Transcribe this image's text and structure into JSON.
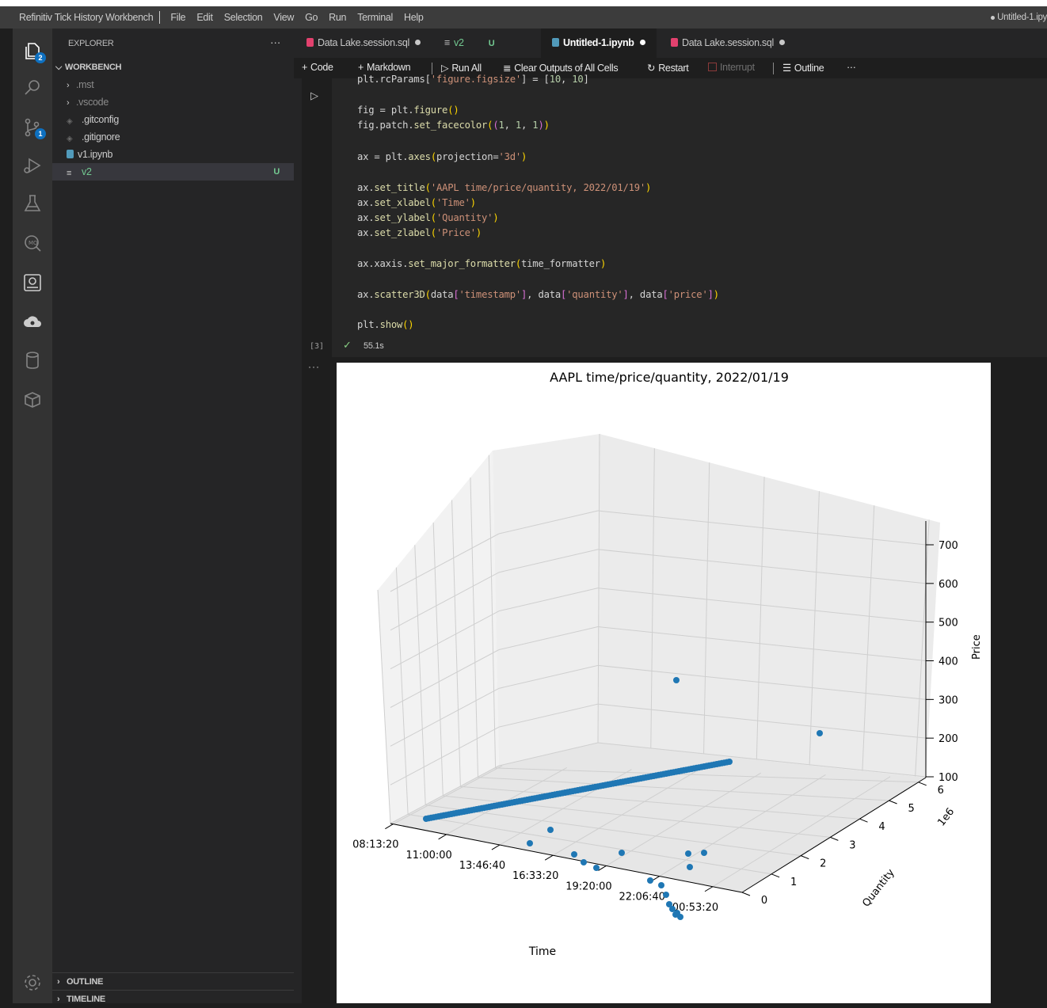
{
  "window": {
    "app_title": "Refinitiv Tick History Workbench",
    "menu": [
      "File",
      "Edit",
      "Selection",
      "View",
      "Go",
      "Run",
      "Terminal",
      "Help"
    ],
    "right_title": "Untitled-1.ipy"
  },
  "activity_bar": {
    "items": [
      {
        "icon": "files-icon",
        "badge": "2"
      },
      {
        "icon": "search-icon"
      },
      {
        "icon": "source-control-icon",
        "badge": "1"
      },
      {
        "icon": "run-debug-icon"
      },
      {
        "icon": "flask-icon"
      },
      {
        "icon": "mq-icon"
      },
      {
        "icon": "notebook-book-icon"
      },
      {
        "icon": "cloud-icon"
      },
      {
        "icon": "database-icon"
      },
      {
        "icon": "package-icon"
      },
      {
        "icon": "gear-icon"
      }
    ]
  },
  "explorer": {
    "header": "EXPLORER",
    "more": "···",
    "root": "WORKBENCH",
    "items": [
      {
        "label": ".mst",
        "type": "folder"
      },
      {
        "label": ".vscode",
        "type": "folder"
      },
      {
        "label": ".gitconfig",
        "type": "file"
      },
      {
        "label": ".gitignore",
        "type": "file"
      },
      {
        "label": "v1.ipynb",
        "type": "notebook"
      },
      {
        "label": "v2",
        "type": "file",
        "badge": "U"
      }
    ],
    "outline": "OUTLINE",
    "timeline": "TIMELINE"
  },
  "tabs": [
    {
      "label": "Data Lake.session.sql",
      "dirty": true
    },
    {
      "label": "v2",
      "badge": "U"
    },
    {
      "label": "Untitled-1.ipynb",
      "dirty": true,
      "active": true
    },
    {
      "label": "Data Lake.session.sql",
      "dirty": true
    }
  ],
  "toolbar": {
    "code": "Code",
    "markdown": "Markdown",
    "run_all": "Run All",
    "clear": "Clear Outputs of All Cells",
    "restart": "Restart",
    "interrupt": "Interrupt",
    "outline": "Outline",
    "more": "···"
  },
  "cell": {
    "exec_count": "[3]",
    "timing": "55.1s",
    "output_more": "···",
    "code_lines": [
      "plt.rcParams['figure.figsize'] = [10, 10]",
      "fig = plt.figure()",
      "fig.patch.set_facecolor((1, 1, 1))",
      "ax = plt.axes(projection='3d')",
      "ax.set_title('AAPL time/price/quantity, 2022/01/19')",
      "ax.set_xlabel('Time')",
      "ax.set_ylabel('Quantity')",
      "ax.set_zlabel('Price')",
      "ax.xaxis.set_major_formatter(time_formatter)",
      "ax.scatter3D(data['timestamp'], data['quantity'], data['price'])",
      "plt.show()"
    ]
  },
  "chart_data": {
    "type": "scatter",
    "projection": "3d",
    "title": "AAPL time/price/quantity, 2022/01/19",
    "xlabel": "Time",
    "ylabel": "Quantity",
    "zlabel": "Price",
    "x_ticks": [
      "08:13:20",
      "11:00:00",
      "13:46:40",
      "16:33:20",
      "19:20:00",
      "22:06:40",
      "00:53:20"
    ],
    "y_ticks": [
      "0",
      "1",
      "2",
      "3",
      "4",
      "5",
      "6"
    ],
    "y_offset_label": "1e6",
    "z_ticks": [
      "100",
      "200",
      "300",
      "400",
      "500",
      "600",
      "700"
    ],
    "zlim": [
      100,
      700
    ],
    "grid": true,
    "marker_color": "#1f77b4"
  }
}
